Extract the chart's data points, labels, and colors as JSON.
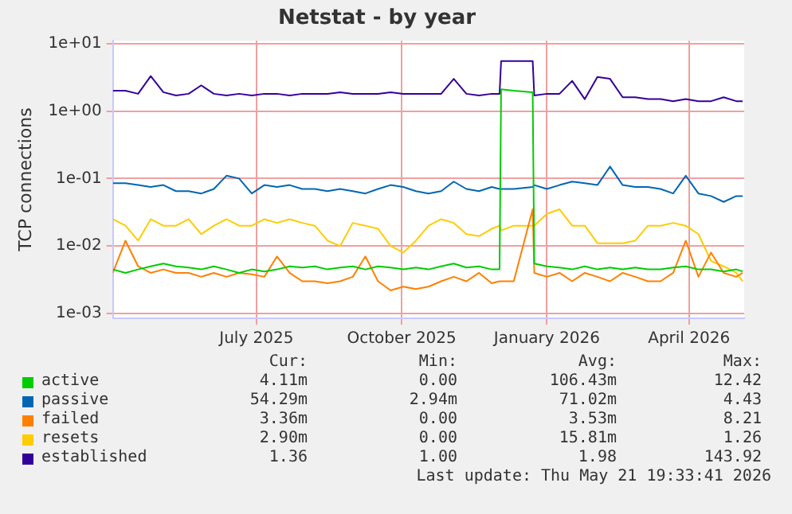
{
  "chart_data": {
    "type": "line",
    "title": "Netstat - by year",
    "ylabel": "TCP connections",
    "log": "y",
    "grid": true,
    "legend": "bottom",
    "marker": "none",
    "line_style": "solid",
    "x": [
      "2025-04-16",
      "2025-04-24",
      "2025-05-02",
      "2025-05-10",
      "2025-05-18",
      "2025-05-26",
      "2025-06-03",
      "2025-06-11",
      "2025-06-19",
      "2025-06-27",
      "2025-07-05",
      "2025-07-13",
      "2025-07-21",
      "2025-07-29",
      "2025-08-06",
      "2025-08-14",
      "2025-08-22",
      "2025-08-30",
      "2025-09-07",
      "2025-09-15",
      "2025-09-23",
      "2025-10-01",
      "2025-10-09",
      "2025-10-17",
      "2025-10-25",
      "2025-11-02",
      "2025-11-10",
      "2025-11-18",
      "2025-11-26",
      "2025-12-04",
      "2025-12-12",
      "2025-12-17",
      "2025-12-18",
      "2025-12-26",
      "2026-01-07",
      "2026-01-08",
      "2026-01-16",
      "2026-01-24",
      "2026-02-01",
      "2026-02-09",
      "2026-02-17",
      "2026-02-25",
      "2026-03-05",
      "2026-03-13",
      "2026-03-21",
      "2026-03-29",
      "2026-04-06",
      "2026-04-14",
      "2026-04-22",
      "2026-04-30",
      "2026-05-08",
      "2026-05-16",
      "2026-05-20"
    ],
    "xlim": [
      "2025-04-16",
      "2026-05-21"
    ],
    "xticks": [
      {
        "value": "2025-07-16",
        "label": "July 2025"
      },
      {
        "value": "2025-10-16",
        "label": "October 2025"
      },
      {
        "value": "2026-01-16",
        "label": "January 2026"
      },
      {
        "value": "2026-04-16",
        "label": "April 2026"
      }
    ],
    "ylim": [
      0.00085,
      11
    ],
    "yticks": [
      {
        "value": 0.001,
        "label": "1e-03"
      },
      {
        "value": 0.01,
        "label": "1e-02"
      },
      {
        "value": 0.1,
        "label": "1e-01"
      },
      {
        "value": 1,
        "label": "1e+00"
      },
      {
        "value": 10,
        "label": "1e+01"
      }
    ],
    "series": [
      {
        "name": "active",
        "color": "#00cc00",
        "values": [
          0.0045,
          0.004,
          0.0045,
          0.005,
          0.0055,
          0.005,
          0.0048,
          0.0045,
          0.005,
          0.0045,
          0.004,
          0.0045,
          0.0042,
          0.0045,
          0.005,
          0.0048,
          0.005,
          0.0045,
          0.0048,
          0.005,
          0.0045,
          0.005,
          0.0048,
          0.0045,
          0.0048,
          0.0045,
          0.005,
          0.0055,
          0.0048,
          0.005,
          0.0045,
          0.0045,
          2.1,
          2.0,
          1.9,
          0.0055,
          0.005,
          0.0048,
          0.0045,
          0.005,
          0.0045,
          0.0048,
          0.0045,
          0.0048,
          0.0045,
          0.0045,
          0.0048,
          0.005,
          0.0045,
          0.0045,
          0.0042,
          0.0045,
          0.0042
        ]
      },
      {
        "name": "passive",
        "color": "#0066b3",
        "values": [
          0.085,
          0.085,
          0.08,
          0.075,
          0.08,
          0.065,
          0.065,
          0.06,
          0.07,
          0.11,
          0.1,
          0.06,
          0.08,
          0.075,
          0.08,
          0.07,
          0.07,
          0.065,
          0.07,
          0.065,
          0.06,
          0.07,
          0.08,
          0.075,
          0.065,
          0.06,
          0.065,
          0.09,
          0.07,
          0.065,
          0.075,
          0.07,
          0.07,
          0.07,
          0.075,
          0.08,
          0.07,
          0.08,
          0.09,
          0.085,
          0.08,
          0.15,
          0.08,
          0.075,
          0.075,
          0.07,
          0.06,
          0.11,
          0.06,
          0.055,
          0.045,
          0.055,
          0.055
        ]
      },
      {
        "name": "failed",
        "color": "#ff8000",
        "values": [
          0.004,
          0.012,
          0.005,
          0.004,
          0.0045,
          0.004,
          0.004,
          0.0035,
          0.004,
          0.0035,
          0.004,
          0.0038,
          0.0035,
          0.007,
          0.004,
          0.003,
          0.003,
          0.0028,
          0.003,
          0.0035,
          0.007,
          0.003,
          0.0022,
          0.0025,
          0.0023,
          0.0025,
          0.003,
          0.0035,
          0.003,
          0.004,
          0.0028,
          0.003,
          0.003,
          0.003,
          0.035,
          0.004,
          0.0035,
          0.004,
          0.003,
          0.004,
          0.0035,
          0.003,
          0.004,
          0.0035,
          0.003,
          0.003,
          0.004,
          0.012,
          0.0035,
          0.008,
          0.004,
          0.0035,
          0.004
        ]
      },
      {
        "name": "resets",
        "color": "#ffcc00",
        "values": [
          0.025,
          0.02,
          0.012,
          0.025,
          0.02,
          0.02,
          0.025,
          0.015,
          0.02,
          0.025,
          0.02,
          0.02,
          0.025,
          0.022,
          0.025,
          0.022,
          0.02,
          0.012,
          0.01,
          0.022,
          0.02,
          0.018,
          0.01,
          0.008,
          0.012,
          0.02,
          0.025,
          0.022,
          0.015,
          0.014,
          0.018,
          0.02,
          0.017,
          0.02,
          0.02,
          0.02,
          0.03,
          0.035,
          0.02,
          0.02,
          0.011,
          0.011,
          0.011,
          0.012,
          0.02,
          0.02,
          0.022,
          0.02,
          0.015,
          0.006,
          0.005,
          0.004,
          0.003
        ]
      },
      {
        "name": "established",
        "color": "#330099",
        "values": [
          2.0,
          2.0,
          1.8,
          3.3,
          1.9,
          1.7,
          1.8,
          2.4,
          1.8,
          1.7,
          1.8,
          1.7,
          1.8,
          1.8,
          1.7,
          1.8,
          1.8,
          1.8,
          1.9,
          1.8,
          1.8,
          1.8,
          1.9,
          1.8,
          1.8,
          1.8,
          1.8,
          3.0,
          1.8,
          1.7,
          1.8,
          1.8,
          5.5,
          5.5,
          5.5,
          1.7,
          1.8,
          1.8,
          2.8,
          1.5,
          3.2,
          3.0,
          1.6,
          1.6,
          1.5,
          1.5,
          1.4,
          1.5,
          1.4,
          1.4,
          1.6,
          1.4,
          1.4
        ]
      }
    ],
    "annotations": [
      "Cur:",
      "Min:",
      "Avg:",
      "Max:",
      "4.11m",
      "0.00",
      "106.43m",
      "12.42",
      "54.29m",
      "2.94m",
      "71.02m",
      "4.43",
      "3.36m",
      "0.00",
      "3.53m",
      "8.21",
      "2.90m",
      "0.00",
      "15.81m",
      "1.26",
      "1.36",
      "1.00",
      "1.98",
      "143.92",
      "Last update: Thu May 21 19:33:41 2026"
    ]
  }
}
